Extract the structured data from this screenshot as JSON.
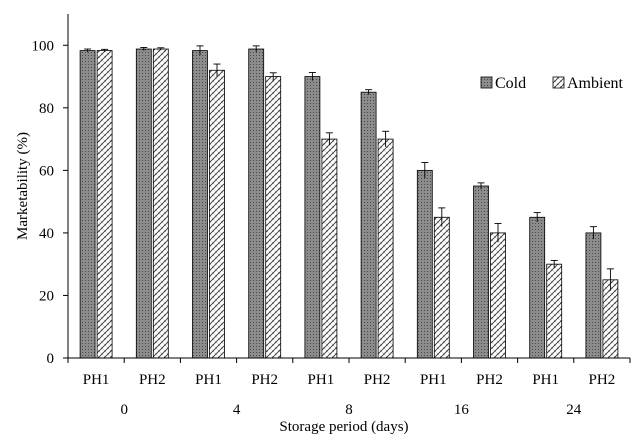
{
  "chart_data": {
    "type": "bar",
    "xlabel": "Storage period (days)",
    "ylabel": "Marketability (%)",
    "ylim": [
      0,
      110
    ],
    "yticks": [
      0,
      20,
      40,
      60,
      80,
      100
    ],
    "categories": [
      "PH1",
      "PH2",
      "PH1",
      "PH2",
      "PH1",
      "PH2",
      "PH1",
      "PH2",
      "PH1",
      "PH2"
    ],
    "groups": [
      {
        "label": "0",
        "categories": [
          "PH1",
          "PH2"
        ]
      },
      {
        "label": "4",
        "categories": [
          "PH1",
          "PH2"
        ]
      },
      {
        "label": "8",
        "categories": [
          "PH1",
          "PH2"
        ]
      },
      {
        "label": "16",
        "categories": [
          "PH1",
          "PH2"
        ]
      },
      {
        "label": "24",
        "categories": [
          "PH1",
          "PH2"
        ]
      }
    ],
    "series": [
      {
        "name": "Cold",
        "values": [
          98.3,
          98.8,
          98.3,
          98.8,
          90,
          85,
          60,
          55,
          45,
          40
        ],
        "errors": [
          0.5,
          0.5,
          1.5,
          1,
          1.3,
          0.8,
          2.5,
          1,
          1.5,
          2
        ]
      },
      {
        "name": "Ambient",
        "values": [
          98.3,
          98.8,
          92,
          90,
          70,
          70,
          45,
          40,
          30,
          25
        ],
        "errors": [
          0.4,
          0.4,
          2,
          1.2,
          2,
          2.5,
          3,
          3,
          1.2,
          3.5
        ]
      }
    ],
    "legend_position": "top-right",
    "grid": false,
    "error_bars": true
  }
}
